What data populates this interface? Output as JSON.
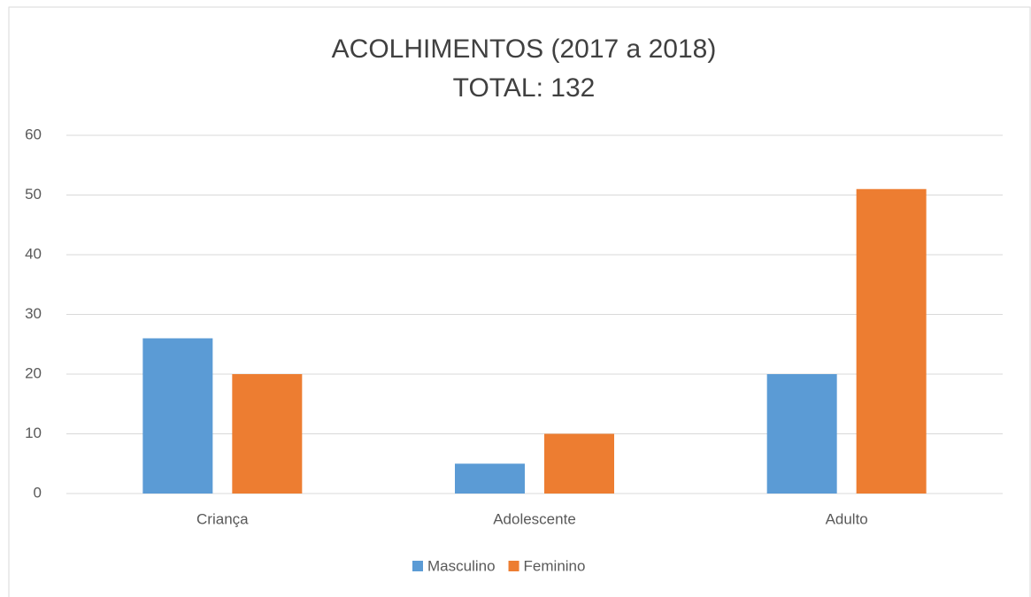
{
  "chart_data": {
    "type": "bar",
    "title": "ACOLHIMENTOS (2017 a 2018)",
    "subtitle": "TOTAL: 132",
    "categories": [
      "Criança",
      "Adolescente",
      "Adulto"
    ],
    "series": [
      {
        "name": "Masculino",
        "color": "#5b9bd5",
        "values": [
          26,
          5,
          20
        ]
      },
      {
        "name": "Feminino",
        "color": "#ed7d31",
        "values": [
          20,
          10,
          51
        ]
      }
    ],
    "ylim": [
      0,
      60
    ],
    "yticks": [
      0,
      10,
      20,
      30,
      40,
      50,
      60
    ],
    "grid": true,
    "legend": "bottom"
  }
}
